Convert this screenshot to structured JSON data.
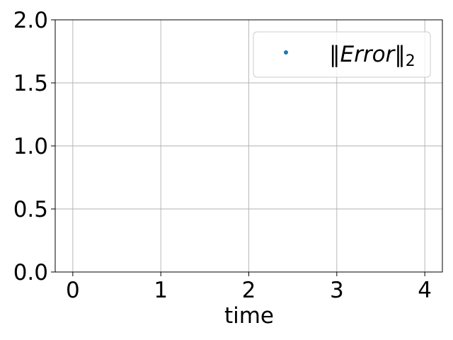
{
  "chart_data": {
    "type": "scatter",
    "title": "",
    "xlabel": "time",
    "ylabel": "",
    "xlim": [
      -0.2,
      4.2
    ],
    "ylim": [
      0.0,
      2.0
    ],
    "xticks": [
      0,
      1,
      2,
      3,
      4
    ],
    "yticks": [
      0.0,
      0.5,
      1.0,
      1.5,
      2.0
    ],
    "xtick_labels": [
      "0",
      "1",
      "2",
      "3",
      "4"
    ],
    "ytick_labels": [
      "0.0",
      "0.5",
      "1.0",
      "1.5",
      "2.0"
    ],
    "grid": true,
    "legend_position": "top-right",
    "series": [
      {
        "name": "‖Error‖₂",
        "name_parts": {
          "open": "‖",
          "main": "Error",
          "close": "‖",
          "sub": "2"
        },
        "color": "#1f77b4",
        "x": [],
        "y": []
      }
    ]
  }
}
